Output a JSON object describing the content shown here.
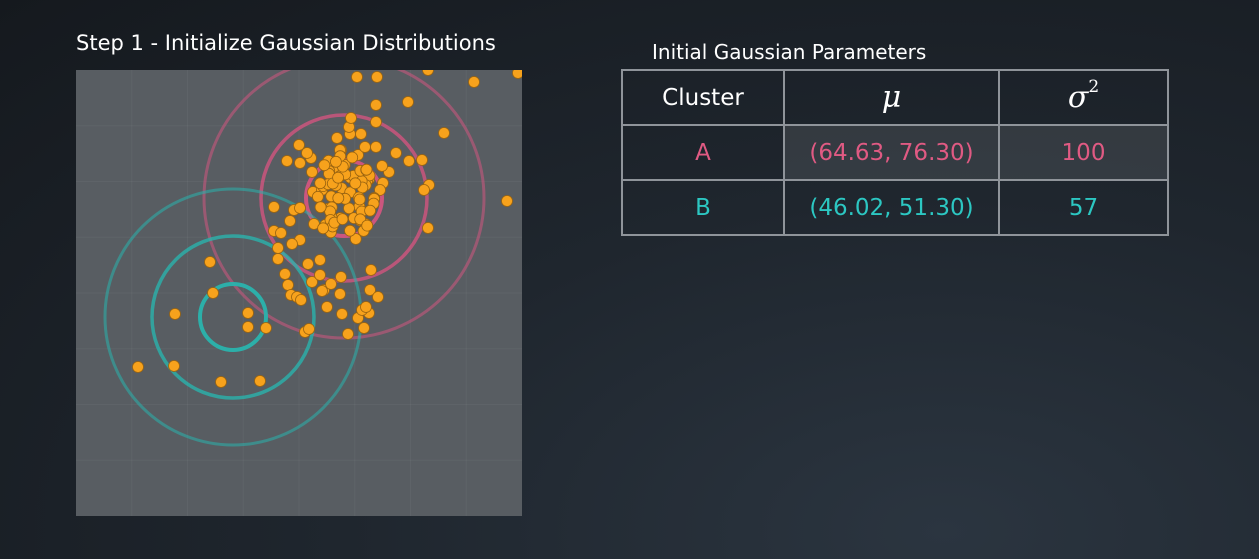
{
  "plot": {
    "title": "Step 1 - Initialize Gaussian Distributions",
    "colors": {
      "panel_background": "#585d62",
      "points": "#f7a21c",
      "cluster_a": "#d2557f",
      "cluster_b": "#2ab3ad"
    }
  },
  "table": {
    "title": "Initial Gaussian Parameters",
    "headers": {
      "cluster": "Cluster",
      "mu": "μ",
      "sigma_symbol": "σ",
      "sigma_exponent": "2"
    },
    "rows": [
      {
        "cluster": "A",
        "mu": "(64.63, 76.30)",
        "sigma2": "100",
        "color": "#e05a83"
      },
      {
        "cluster": "B",
        "mu": "(46.02, 51.30)",
        "sigma2": "57",
        "color": "#2cc7c2"
      }
    ]
  }
}
